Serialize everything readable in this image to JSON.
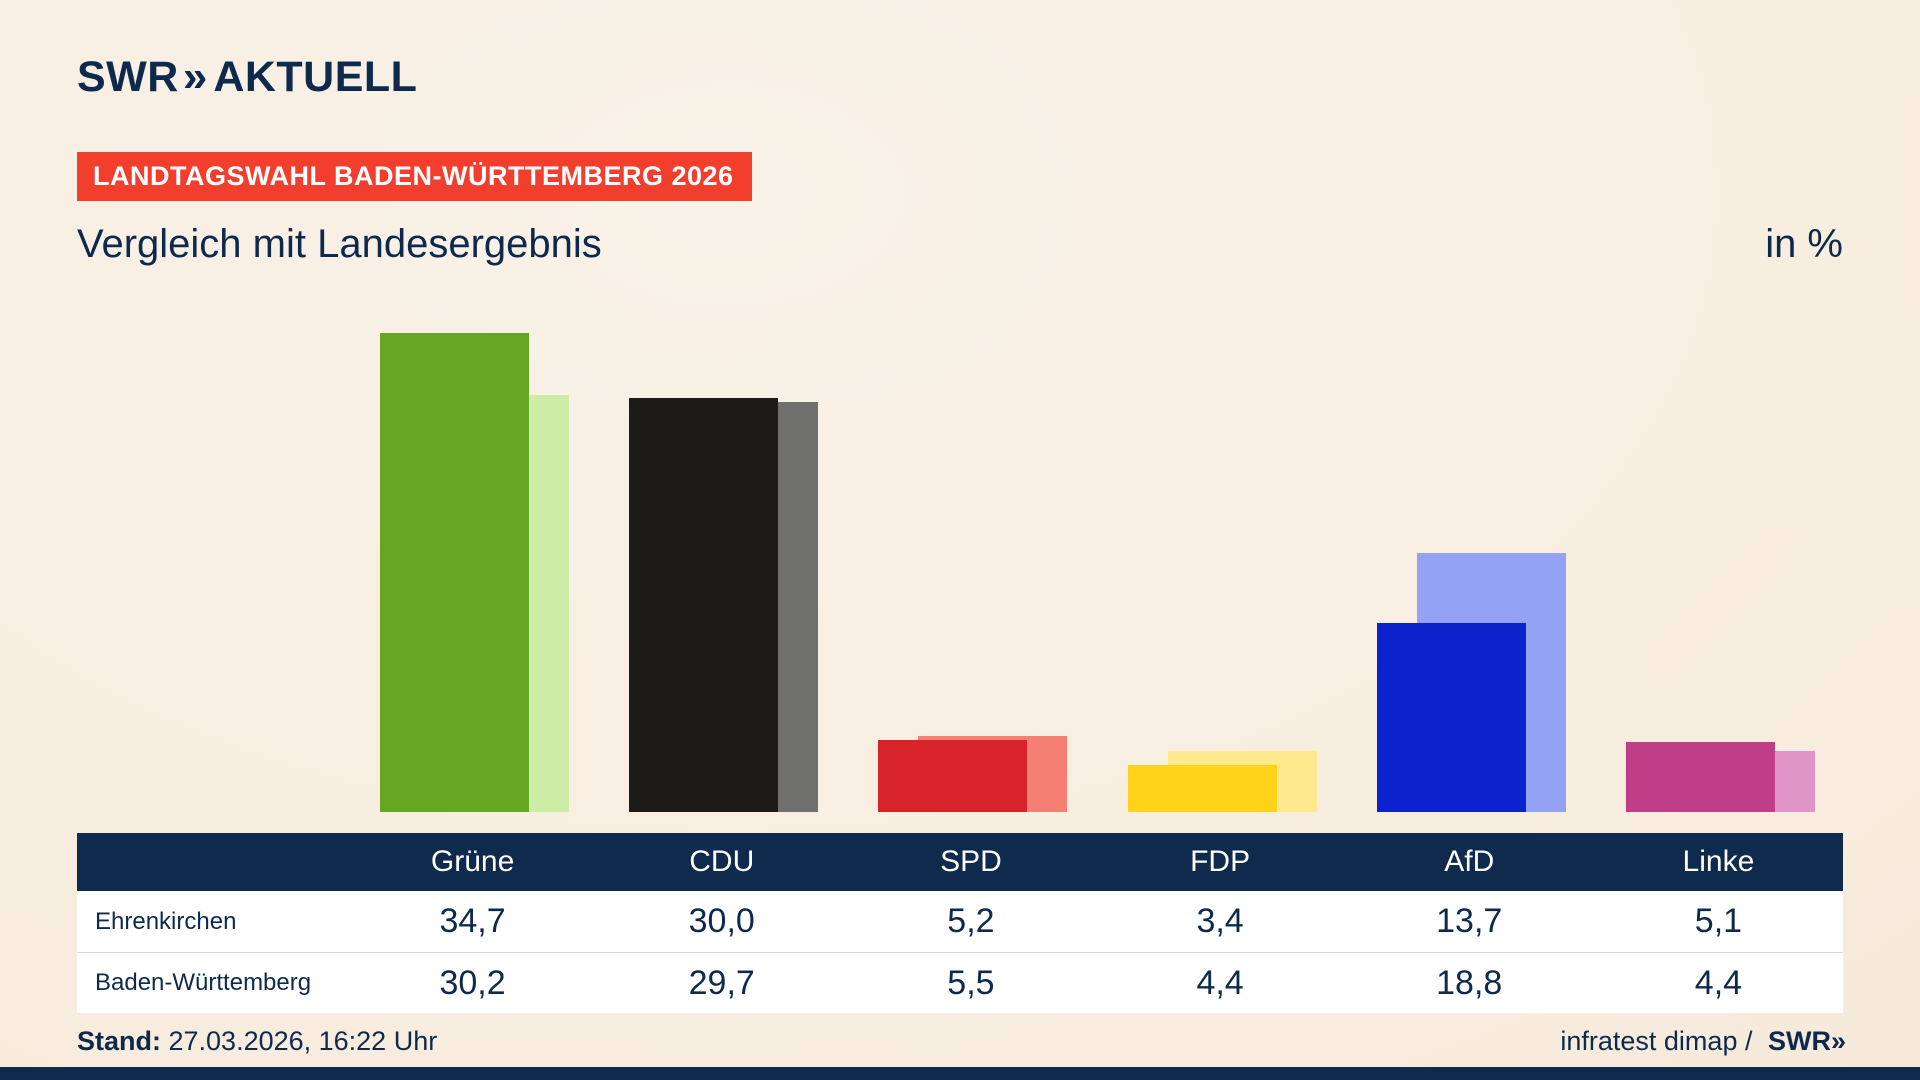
{
  "brand": {
    "logo_swr": "SWR",
    "logo_chevrons": "»",
    "logo_suffix": "AKTUELL"
  },
  "badge": {
    "label": "LANDTAGSWAHL BADEN-WÜRTTEMBERG 2026",
    "bg": "#f23e2d"
  },
  "title": "Vergleich mit Landesergebnis",
  "unit_label": "in %",
  "chart_data": {
    "type": "bar",
    "categories": [
      "Grüne",
      "CDU",
      "SPD",
      "FDP",
      "AfD",
      "Linke"
    ],
    "series": [
      {
        "name": "Ehrenkirchen",
        "values": [
          34.7,
          30.0,
          5.2,
          3.4,
          13.7,
          5.1
        ]
      },
      {
        "name": "Baden-Württemberg",
        "values": [
          30.2,
          29.7,
          5.5,
          4.4,
          18.8,
          4.4
        ]
      }
    ],
    "colors": {
      "main": [
        "#66a622",
        "#1c1b17",
        "#d8232a",
        "#ffd319",
        "#0b22cc",
        "#c03e87"
      ],
      "light": [
        "#cdeca5",
        "#6f6f6d",
        "#f57f72",
        "#ffe98f",
        "#93a2f2",
        "#df94c6"
      ]
    },
    "title": "Vergleich mit Landesergebnis",
    "xlabel": "",
    "ylabel": "in %",
    "ylim": [
      0,
      37
    ],
    "grid": false,
    "legend_position": "table-below"
  },
  "table": {
    "header": [
      "",
      "Grüne",
      "CDU",
      "SPD",
      "FDP",
      "AfD",
      "Linke"
    ],
    "rows": [
      {
        "label": "Ehrenkirchen",
        "values": [
          "34,7",
          "30,0",
          "5,2",
          "3,4",
          "13,7",
          "5,1"
        ]
      },
      {
        "label": "Baden-Württemberg",
        "values": [
          "30,2",
          "29,7",
          "5,5",
          "4,4",
          "18,8",
          "4,4"
        ]
      }
    ]
  },
  "footer": {
    "stand_label": "Stand:",
    "stand_value": " 27.03.2026, 16:22 Uhr",
    "credit_text": "infratest dimap / ",
    "credit_logo_swr": "SWR",
    "credit_logo_chevrons": "»"
  }
}
